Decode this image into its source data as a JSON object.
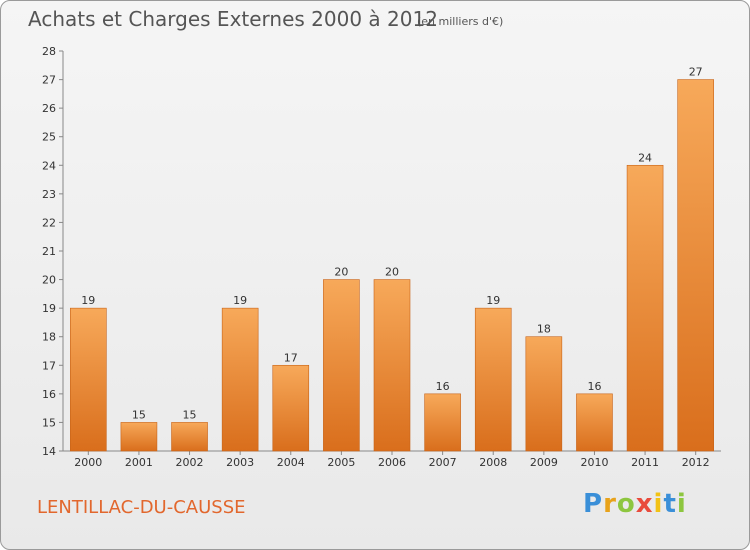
{
  "header": {
    "title": "Achats et Charges Externes 2000 à 2012",
    "unit": "(en milliers d'€)"
  },
  "footer": {
    "commune": "LENTILLAC-DU-CAUSSE",
    "logo_letters": [
      "P",
      "r",
      "o",
      "x",
      "i",
      "t",
      "i"
    ],
    "logo_colors": [
      "#3a8fd8",
      "#e8a21a",
      "#8dc63f",
      "#e94b3c",
      "#f2c215",
      "#3a8fd8",
      "#8dc63f"
    ]
  },
  "colors": {
    "bar_light": "#f7a95a",
    "bar_dark": "#d96e1c",
    "bar_edge": "#c76318"
  },
  "chart_data": {
    "type": "bar",
    "title": "Achats et Charges Externes 2000 à 2012",
    "xlabel": "",
    "ylabel": "",
    "categories": [
      "2000",
      "2001",
      "2002",
      "2003",
      "2004",
      "2005",
      "2006",
      "2007",
      "2008",
      "2009",
      "2010",
      "2011",
      "2012"
    ],
    "values": [
      19,
      15,
      15,
      19,
      17,
      20,
      20,
      16,
      19,
      18,
      16,
      24,
      27
    ],
    "ylim": [
      14,
      28
    ],
    "yticks": [
      14,
      15,
      16,
      17,
      18,
      19,
      20,
      21,
      22,
      23,
      24,
      25,
      26,
      27,
      28
    ],
    "grid": false,
    "legend": "none"
  }
}
